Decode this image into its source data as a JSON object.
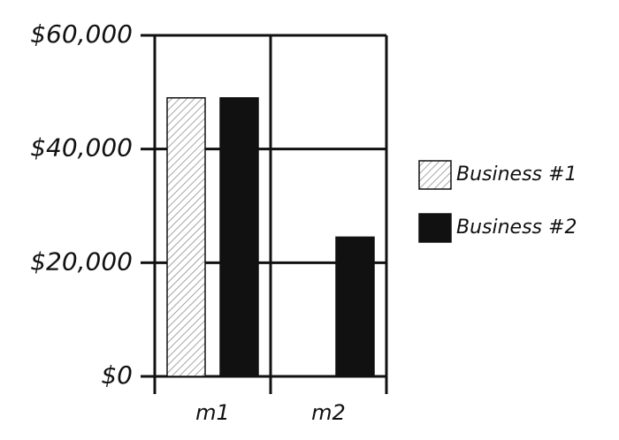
{
  "chart_data": {
    "type": "bar",
    "categories": [
      "m1",
      "m2"
    ],
    "series": [
      {
        "name": "Business #1",
        "color": "#888888",
        "values": [
          49000,
          0
        ]
      },
      {
        "name": "Business #2",
        "color": "#111111",
        "values": [
          49000,
          24500
        ]
      }
    ],
    "ylim": [
      0,
      60000
    ],
    "yticks": [
      {
        "value": 0,
        "label": "$0"
      },
      {
        "value": 20000,
        "label": "$20,000"
      },
      {
        "value": 40000,
        "label": "$40,000"
      },
      {
        "value": 60000,
        "label": "$60,000"
      }
    ],
    "grid": true,
    "legend": "right"
  }
}
